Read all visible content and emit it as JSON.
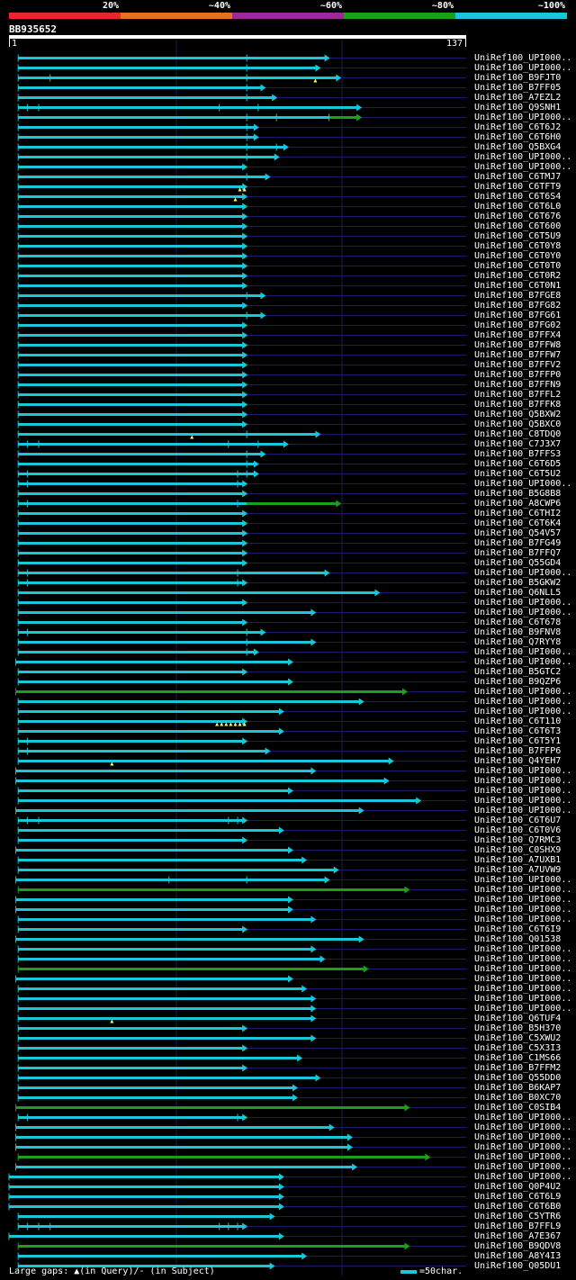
{
  "legend": {
    "segments": [
      {
        "label": "20%",
        "color": "#e8262e"
      },
      {
        "label": "~40%",
        "color": "#e8701e"
      },
      {
        "label": "~60%",
        "color": "#9a2a9a"
      },
      {
        "label": "~80%",
        "color": "#1aa01a"
      },
      {
        "label": "~100%",
        "color": "#18c8d8"
      }
    ]
  },
  "query": {
    "id": "BB935652",
    "start": "1",
    "end": "137"
  },
  "colors": {
    "cyan": "#18c8d8",
    "green": "#1aa01a",
    "grid": "#1a1a6a",
    "gap": "#ffff66"
  },
  "hits": [
    {
      "name": "UniRef100_UPI000..",
      "s": 0.02,
      "e": 0.7,
      "c": "c",
      "m": [
        0.52
      ]
    },
    {
      "name": "UniRef100_UPI000..",
      "s": 0.02,
      "e": 0.68,
      "c": "c",
      "m": [
        0.52
      ]
    },
    {
      "name": "UniRef100_B9FJT0",
      "s": 0.02,
      "e": 0.725,
      "c": "c",
      "m": [
        0.09,
        0.52
      ],
      "g": [
        0.67
      ]
    },
    {
      "name": "UniRef100_B7FF05",
      "s": 0.02,
      "e": 0.56,
      "c": "c",
      "m": [
        0.52
      ]
    },
    {
      "name": "UniRef100_A7EZL2",
      "s": 0.02,
      "e": 0.585,
      "c": "c",
      "m": [
        0.52
      ]
    },
    {
      "name": "UniRef100_Q9SNH1",
      "s": 0.02,
      "e": 0.77,
      "c": "c",
      "m": [
        0.04,
        0.065,
        0.46,
        0.545
      ]
    },
    {
      "name": "UniRef100_UPI000..",
      "s": 0.02,
      "e": 0.77,
      "c": "c",
      "m": [
        0.52,
        0.585,
        0.7
      ],
      "gr": [
        0.7,
        0.77
      ]
    },
    {
      "name": "UniRef100_C6T6J2",
      "s": 0.02,
      "e": 0.545,
      "c": "c",
      "m": [
        0.52
      ]
    },
    {
      "name": "UniRef100_C6T6H0",
      "s": 0.02,
      "e": 0.545,
      "c": "c",
      "m": [
        0.52
      ]
    },
    {
      "name": "UniRef100_Q5BXG4",
      "s": 0.02,
      "e": 0.61,
      "c": "c",
      "m": [
        0.52,
        0.585
      ]
    },
    {
      "name": "UniRef100_UPI000..",
      "s": 0.02,
      "e": 0.59,
      "c": "c",
      "m": [
        0.52
      ]
    },
    {
      "name": "UniRef100_UPI000..",
      "s": 0.02,
      "e": 0.52,
      "c": "c",
      "m": []
    },
    {
      "name": "UniRef100_C6TMJ7",
      "s": 0.02,
      "e": 0.57,
      "c": "c",
      "m": [
        0.52
      ]
    },
    {
      "name": "UniRef100_C6TFT9",
      "s": 0.02,
      "e": 0.52,
      "c": "c",
      "m": [],
      "g": [
        0.505,
        0.515
      ]
    },
    {
      "name": "UniRef100_C6T6S4",
      "s": 0.02,
      "e": 0.52,
      "c": "c",
      "m": [],
      "g": [
        0.495
      ]
    },
    {
      "name": "UniRef100_C6T6L0",
      "s": 0.02,
      "e": 0.52,
      "c": "c",
      "m": []
    },
    {
      "name": "UniRef100_C6T676",
      "s": 0.02,
      "e": 0.52,
      "c": "c",
      "m": []
    },
    {
      "name": "UniRef100_C6T600",
      "s": 0.02,
      "e": 0.52,
      "c": "c",
      "m": []
    },
    {
      "name": "UniRef100_C6T5U9",
      "s": 0.02,
      "e": 0.52,
      "c": "c",
      "m": []
    },
    {
      "name": "UniRef100_C6T0Y8",
      "s": 0.02,
      "e": 0.52,
      "c": "c",
      "m": []
    },
    {
      "name": "UniRef100_C6T0Y0",
      "s": 0.02,
      "e": 0.52,
      "c": "c",
      "m": []
    },
    {
      "name": "UniRef100_C6T0T0",
      "s": 0.02,
      "e": 0.52,
      "c": "c",
      "m": []
    },
    {
      "name": "UniRef100_C6T0R2",
      "s": 0.02,
      "e": 0.52,
      "c": "c",
      "m": []
    },
    {
      "name": "UniRef100_C6T0N1",
      "s": 0.02,
      "e": 0.52,
      "c": "c",
      "m": []
    },
    {
      "name": "UniRef100_B7FGE8",
      "s": 0.02,
      "e": 0.56,
      "c": "c",
      "m": [
        0.52
      ]
    },
    {
      "name": "UniRef100_B7FG82",
      "s": 0.02,
      "e": 0.52,
      "c": "c",
      "m": []
    },
    {
      "name": "UniRef100_B7FG61",
      "s": 0.02,
      "e": 0.56,
      "c": "c",
      "m": [
        0.52
      ]
    },
    {
      "name": "UniRef100_B7FG02",
      "s": 0.02,
      "e": 0.52,
      "c": "c",
      "m": []
    },
    {
      "name": "UniRef100_B7FFX4",
      "s": 0.02,
      "e": 0.52,
      "c": "c",
      "m": []
    },
    {
      "name": "UniRef100_B7FFW8",
      "s": 0.02,
      "e": 0.52,
      "c": "c",
      "m": []
    },
    {
      "name": "UniRef100_B7FFW7",
      "s": 0.02,
      "e": 0.52,
      "c": "c",
      "m": []
    },
    {
      "name": "UniRef100_B7FFV2",
      "s": 0.02,
      "e": 0.52,
      "c": "c",
      "m": []
    },
    {
      "name": "UniRef100_B7FFP0",
      "s": 0.02,
      "e": 0.52,
      "c": "c",
      "m": []
    },
    {
      "name": "UniRef100_B7FFN9",
      "s": 0.02,
      "e": 0.52,
      "c": "c",
      "m": []
    },
    {
      "name": "UniRef100_B7FFL2",
      "s": 0.02,
      "e": 0.52,
      "c": "c",
      "m": []
    },
    {
      "name": "UniRef100_B7FFK8",
      "s": 0.02,
      "e": 0.52,
      "c": "c",
      "m": []
    },
    {
      "name": "UniRef100_Q5BXW2",
      "s": 0.02,
      "e": 0.52,
      "c": "c",
      "m": []
    },
    {
      "name": "UniRef100_Q5BXC0",
      "s": 0.02,
      "e": 0.52,
      "c": "c",
      "m": []
    },
    {
      "name": "UniRef100_C8TDQ0",
      "s": 0.02,
      "e": 0.68,
      "c": "c",
      "m": [
        0.52
      ],
      "g": [
        0.4
      ]
    },
    {
      "name": "UniRef100_C7J3X7",
      "s": 0.02,
      "e": 0.61,
      "c": "c",
      "m": [
        0.04,
        0.065,
        0.48,
        0.545
      ]
    },
    {
      "name": "UniRef100_B7FFS3",
      "s": 0.02,
      "e": 0.56,
      "c": "c",
      "m": [
        0.52
      ]
    },
    {
      "name": "UniRef100_C6T6D5",
      "s": 0.02,
      "e": 0.545,
      "c": "c",
      "m": [
        0.52
      ]
    },
    {
      "name": "UniRef100_C6T5U2",
      "s": 0.02,
      "e": 0.545,
      "c": "c",
      "m": [
        0.04,
        0.5,
        0.52
      ]
    },
    {
      "name": "UniRef100_UPI000..",
      "s": 0.02,
      "e": 0.52,
      "c": "c",
      "m": [
        0.04,
        0.5
      ]
    },
    {
      "name": "UniRef100_B5G8B8",
      "s": 0.02,
      "e": 0.52,
      "c": "c",
      "m": []
    },
    {
      "name": "UniRef100_A8CWP6",
      "s": 0.02,
      "e": 0.725,
      "c": "c",
      "m": [
        0.04,
        0.5
      ],
      "gr": [
        0.52,
        0.725
      ]
    },
    {
      "name": "UniRef100_C6THI2",
      "s": 0.02,
      "e": 0.52,
      "c": "c",
      "m": []
    },
    {
      "name": "UniRef100_C6T6K4",
      "s": 0.02,
      "e": 0.52,
      "c": "c",
      "m": []
    },
    {
      "name": "UniRef100_Q54V57",
      "s": 0.02,
      "e": 0.52,
      "c": "c",
      "m": []
    },
    {
      "name": "UniRef100_B7FG49",
      "s": 0.02,
      "e": 0.52,
      "c": "c",
      "m": []
    },
    {
      "name": "UniRef100_B7FFQ7",
      "s": 0.02,
      "e": 0.52,
      "c": "c",
      "m": []
    },
    {
      "name": "UniRef100_Q55GD4",
      "s": 0.02,
      "e": 0.52,
      "c": "c",
      "m": []
    },
    {
      "name": "UniRef100_UPI000..",
      "s": 0.02,
      "e": 0.7,
      "c": "c",
      "m": [
        0.04,
        0.5
      ]
    },
    {
      "name": "UniRef100_B5GKW2",
      "s": 0.02,
      "e": 0.52,
      "c": "c",
      "m": [
        0.04,
        0.5
      ]
    },
    {
      "name": "UniRef100_Q6NLL5",
      "s": 0.02,
      "e": 0.81,
      "c": "c",
      "m": []
    },
    {
      "name": "UniRef100_UPI000..",
      "s": 0.02,
      "e": 0.52,
      "c": "c",
      "m": []
    },
    {
      "name": "UniRef100_UPI000..",
      "s": 0.02,
      "e": 0.67,
      "c": "c",
      "m": []
    },
    {
      "name": "UniRef100_C6T678",
      "s": 0.02,
      "e": 0.52,
      "c": "c",
      "m": []
    },
    {
      "name": "UniRef100_B9FNV8",
      "s": 0.02,
      "e": 0.56,
      "c": "c",
      "m": [
        0.04,
        0.52
      ]
    },
    {
      "name": "UniRef100_Q7RYY8",
      "s": 0.02,
      "e": 0.67,
      "c": "c",
      "m": [
        0.52
      ]
    },
    {
      "name": "UniRef100_UPI000..",
      "s": 0.02,
      "e": 0.545,
      "c": "c",
      "m": [
        0.52
      ]
    },
    {
      "name": "UniRef100_UPI000..",
      "s": 0.015,
      "e": 0.62,
      "c": "c",
      "m": []
    },
    {
      "name": "UniRef100_B5GTC2",
      "s": 0.02,
      "e": 0.52,
      "c": "c",
      "m": []
    },
    {
      "name": "UniRef100_B9QZP6",
      "s": 0.02,
      "e": 0.62,
      "c": "c",
      "m": []
    },
    {
      "name": "UniRef100_UPI000..",
      "s": 0.015,
      "e": 0.87,
      "c": "g",
      "m": []
    },
    {
      "name": "UniRef100_UPI000..",
      "s": 0.02,
      "e": 0.775,
      "c": "c",
      "m": []
    },
    {
      "name": "UniRef100_UPI000..",
      "s": 0.02,
      "e": 0.6,
      "c": "c",
      "m": []
    },
    {
      "name": "UniRef100_C6T110",
      "s": 0.02,
      "e": 0.52,
      "c": "c",
      "m": [],
      "g": [
        0.455,
        0.465,
        0.475,
        0.485,
        0.495,
        0.505,
        0.515
      ]
    },
    {
      "name": "UniRef100_C6T6T3",
      "s": 0.02,
      "e": 0.6,
      "c": "c",
      "m": []
    },
    {
      "name": "UniRef100_C6T5Y1",
      "s": 0.02,
      "e": 0.52,
      "c": "c",
      "m": [
        0.04
      ]
    },
    {
      "name": "UniRef100_B7FFP6",
      "s": 0.02,
      "e": 0.57,
      "c": "c",
      "m": [
        0.04
      ]
    },
    {
      "name": "UniRef100_Q4YEH7",
      "s": 0.02,
      "e": 0.84,
      "c": "c",
      "m": [],
      "g": [
        0.225
      ]
    },
    {
      "name": "UniRef100_UPI000..",
      "s": 0.015,
      "e": 0.67,
      "c": "c",
      "m": []
    },
    {
      "name": "UniRef100_UPI000..",
      "s": 0.015,
      "e": 0.83,
      "c": "c",
      "m": []
    },
    {
      "name": "UniRef100_UPI000..",
      "s": 0.02,
      "e": 0.62,
      "c": "c",
      "m": []
    },
    {
      "name": "UniRef100_UPI000..",
      "s": 0.02,
      "e": 0.9,
      "c": "c",
      "m": []
    },
    {
      "name": "UniRef100_UPI000..",
      "s": 0.015,
      "e": 0.775,
      "c": "c",
      "m": []
    },
    {
      "name": "UniRef100_C6T6U7",
      "s": 0.02,
      "e": 0.52,
      "c": "c",
      "m": [
        0.04,
        0.065,
        0.48,
        0.5
      ]
    },
    {
      "name": "UniRef100_C6T0V6",
      "s": 0.02,
      "e": 0.6,
      "c": "c",
      "m": []
    },
    {
      "name": "UniRef100_Q7RMC3",
      "s": 0.02,
      "e": 0.52,
      "c": "c",
      "m": []
    },
    {
      "name": "UniRef100_C0SHX9",
      "s": 0.015,
      "e": 0.62,
      "c": "c",
      "m": []
    },
    {
      "name": "UniRef100_A7UXB1",
      "s": 0.02,
      "e": 0.65,
      "c": "c",
      "m": []
    },
    {
      "name": "UniRef100_A7UVW9",
      "s": 0.02,
      "e": 0.72,
      "c": "c",
      "m": []
    },
    {
      "name": "UniRef100_UPI000..",
      "s": 0.015,
      "e": 0.7,
      "c": "c",
      "m": [
        0.35,
        0.52
      ]
    },
    {
      "name": "UniRef100_UPI000..",
      "s": 0.02,
      "e": 0.875,
      "c": "g",
      "m": []
    },
    {
      "name": "UniRef100_UPI000..",
      "s": 0.015,
      "e": 0.62,
      "c": "c",
      "m": []
    },
    {
      "name": "UniRef100_UPI000..",
      "s": 0.015,
      "e": 0.62,
      "c": "c",
      "m": []
    },
    {
      "name": "UniRef100_UPI000..",
      "s": 0.02,
      "e": 0.67,
      "c": "c",
      "m": []
    },
    {
      "name": "UniRef100_C6T6I9",
      "s": 0.02,
      "e": 0.52,
      "c": "c",
      "m": []
    },
    {
      "name": "UniRef100_Q01538",
      "s": 0.015,
      "e": 0.775,
      "c": "c",
      "m": []
    },
    {
      "name": "UniRef100_UPI000..",
      "s": 0.02,
      "e": 0.67,
      "c": "c",
      "m": []
    },
    {
      "name": "UniRef100_UPI000..",
      "s": 0.02,
      "e": 0.69,
      "c": "c",
      "m": []
    },
    {
      "name": "UniRef100_UPI000..",
      "s": 0.02,
      "e": 0.785,
      "c": "g",
      "m": []
    },
    {
      "name": "UniRef100_UPI000..",
      "s": 0.015,
      "e": 0.62,
      "c": "c",
      "m": []
    },
    {
      "name": "UniRef100_UPI000..",
      "s": 0.02,
      "e": 0.65,
      "c": "c",
      "m": []
    },
    {
      "name": "UniRef100_UPI000..",
      "s": 0.02,
      "e": 0.67,
      "c": "c",
      "m": []
    },
    {
      "name": "UniRef100_UPI000..",
      "s": 0.02,
      "e": 0.67,
      "c": "c",
      "m": []
    },
    {
      "name": "UniRef100_Q6TUF4",
      "s": 0.02,
      "e": 0.67,
      "c": "c",
      "m": [],
      "g": [
        0.225
      ]
    },
    {
      "name": "UniRef100_B5H370",
      "s": 0.02,
      "e": 0.52,
      "c": "c",
      "m": []
    },
    {
      "name": "UniRef100_C5XWU2",
      "s": 0.02,
      "e": 0.67,
      "c": "c",
      "m": []
    },
    {
      "name": "UniRef100_C5X3I3",
      "s": 0.02,
      "e": 0.52,
      "c": "c",
      "m": []
    },
    {
      "name": "UniRef100_C1MS66",
      "s": 0.02,
      "e": 0.64,
      "c": "c",
      "m": []
    },
    {
      "name": "UniRef100_B7FFM2",
      "s": 0.02,
      "e": 0.52,
      "c": "c",
      "m": []
    },
    {
      "name": "UniRef100_Q55DD0",
      "s": 0.02,
      "e": 0.68,
      "c": "c",
      "m": []
    },
    {
      "name": "UniRef100_B6KAP7",
      "s": 0.02,
      "e": 0.63,
      "c": "c",
      "m": []
    },
    {
      "name": "UniRef100_B0XC70",
      "s": 0.02,
      "e": 0.63,
      "c": "c",
      "m": []
    },
    {
      "name": "UniRef100_C0SIB4",
      "s": 0.015,
      "e": 0.875,
      "c": "g",
      "m": []
    },
    {
      "name": "UniRef100_UPI000..",
      "s": 0.02,
      "e": 0.52,
      "c": "c",
      "m": [
        0.04,
        0.5
      ]
    },
    {
      "name": "UniRef100_UPI000..",
      "s": 0.015,
      "e": 0.71,
      "c": "c",
      "m": []
    },
    {
      "name": "UniRef100_UPI000..",
      "s": 0.015,
      "e": 0.75,
      "c": "c",
      "m": []
    },
    {
      "name": "UniRef100_UPI000..",
      "s": 0.015,
      "e": 0.75,
      "c": "c",
      "m": []
    },
    {
      "name": "UniRef100_UPI000..",
      "s": 0.02,
      "e": 0.92,
      "c": "g",
      "m": []
    },
    {
      "name": "UniRef100_UPI000..",
      "s": 0.015,
      "e": 0.76,
      "c": "c",
      "m": []
    },
    {
      "name": "UniRef100_UPI000..",
      "s": 0.0,
      "e": 0.6,
      "c": "c",
      "m": []
    },
    {
      "name": "UniRef100_Q0P4U2",
      "s": 0.0,
      "e": 0.6,
      "c": "c",
      "m": []
    },
    {
      "name": "UniRef100_C6T6L9",
      "s": 0.0,
      "e": 0.6,
      "c": "c",
      "m": []
    },
    {
      "name": "UniRef100_C6T6B0",
      "s": 0.0,
      "e": 0.6,
      "c": "c",
      "m": []
    },
    {
      "name": "UniRef100_C5YTR6",
      "s": 0.02,
      "e": 0.58,
      "c": "c",
      "m": []
    },
    {
      "name": "UniRef100_B7FFL9",
      "s": 0.02,
      "e": 0.52,
      "c": "c",
      "m": [
        0.04,
        0.065,
        0.09,
        0.46,
        0.48,
        0.5
      ]
    },
    {
      "name": "UniRef100_A7E367",
      "s": 0.0,
      "e": 0.6,
      "c": "c",
      "m": []
    },
    {
      "name": "UniRef100_B9QDV8",
      "s": 0.02,
      "e": 0.875,
      "c": "g",
      "m": []
    },
    {
      "name": "UniRef100_A8Y4I3",
      "s": 0.02,
      "e": 0.65,
      "c": "c",
      "m": []
    },
    {
      "name": "UniRef100_Q05DU1",
      "s": 0.02,
      "e": 0.58,
      "c": "c",
      "m": []
    }
  ],
  "footer": {
    "gaps_label": "Large gaps: ▲(in Query)/- (in Subject)",
    "scale_label": "=50char."
  }
}
